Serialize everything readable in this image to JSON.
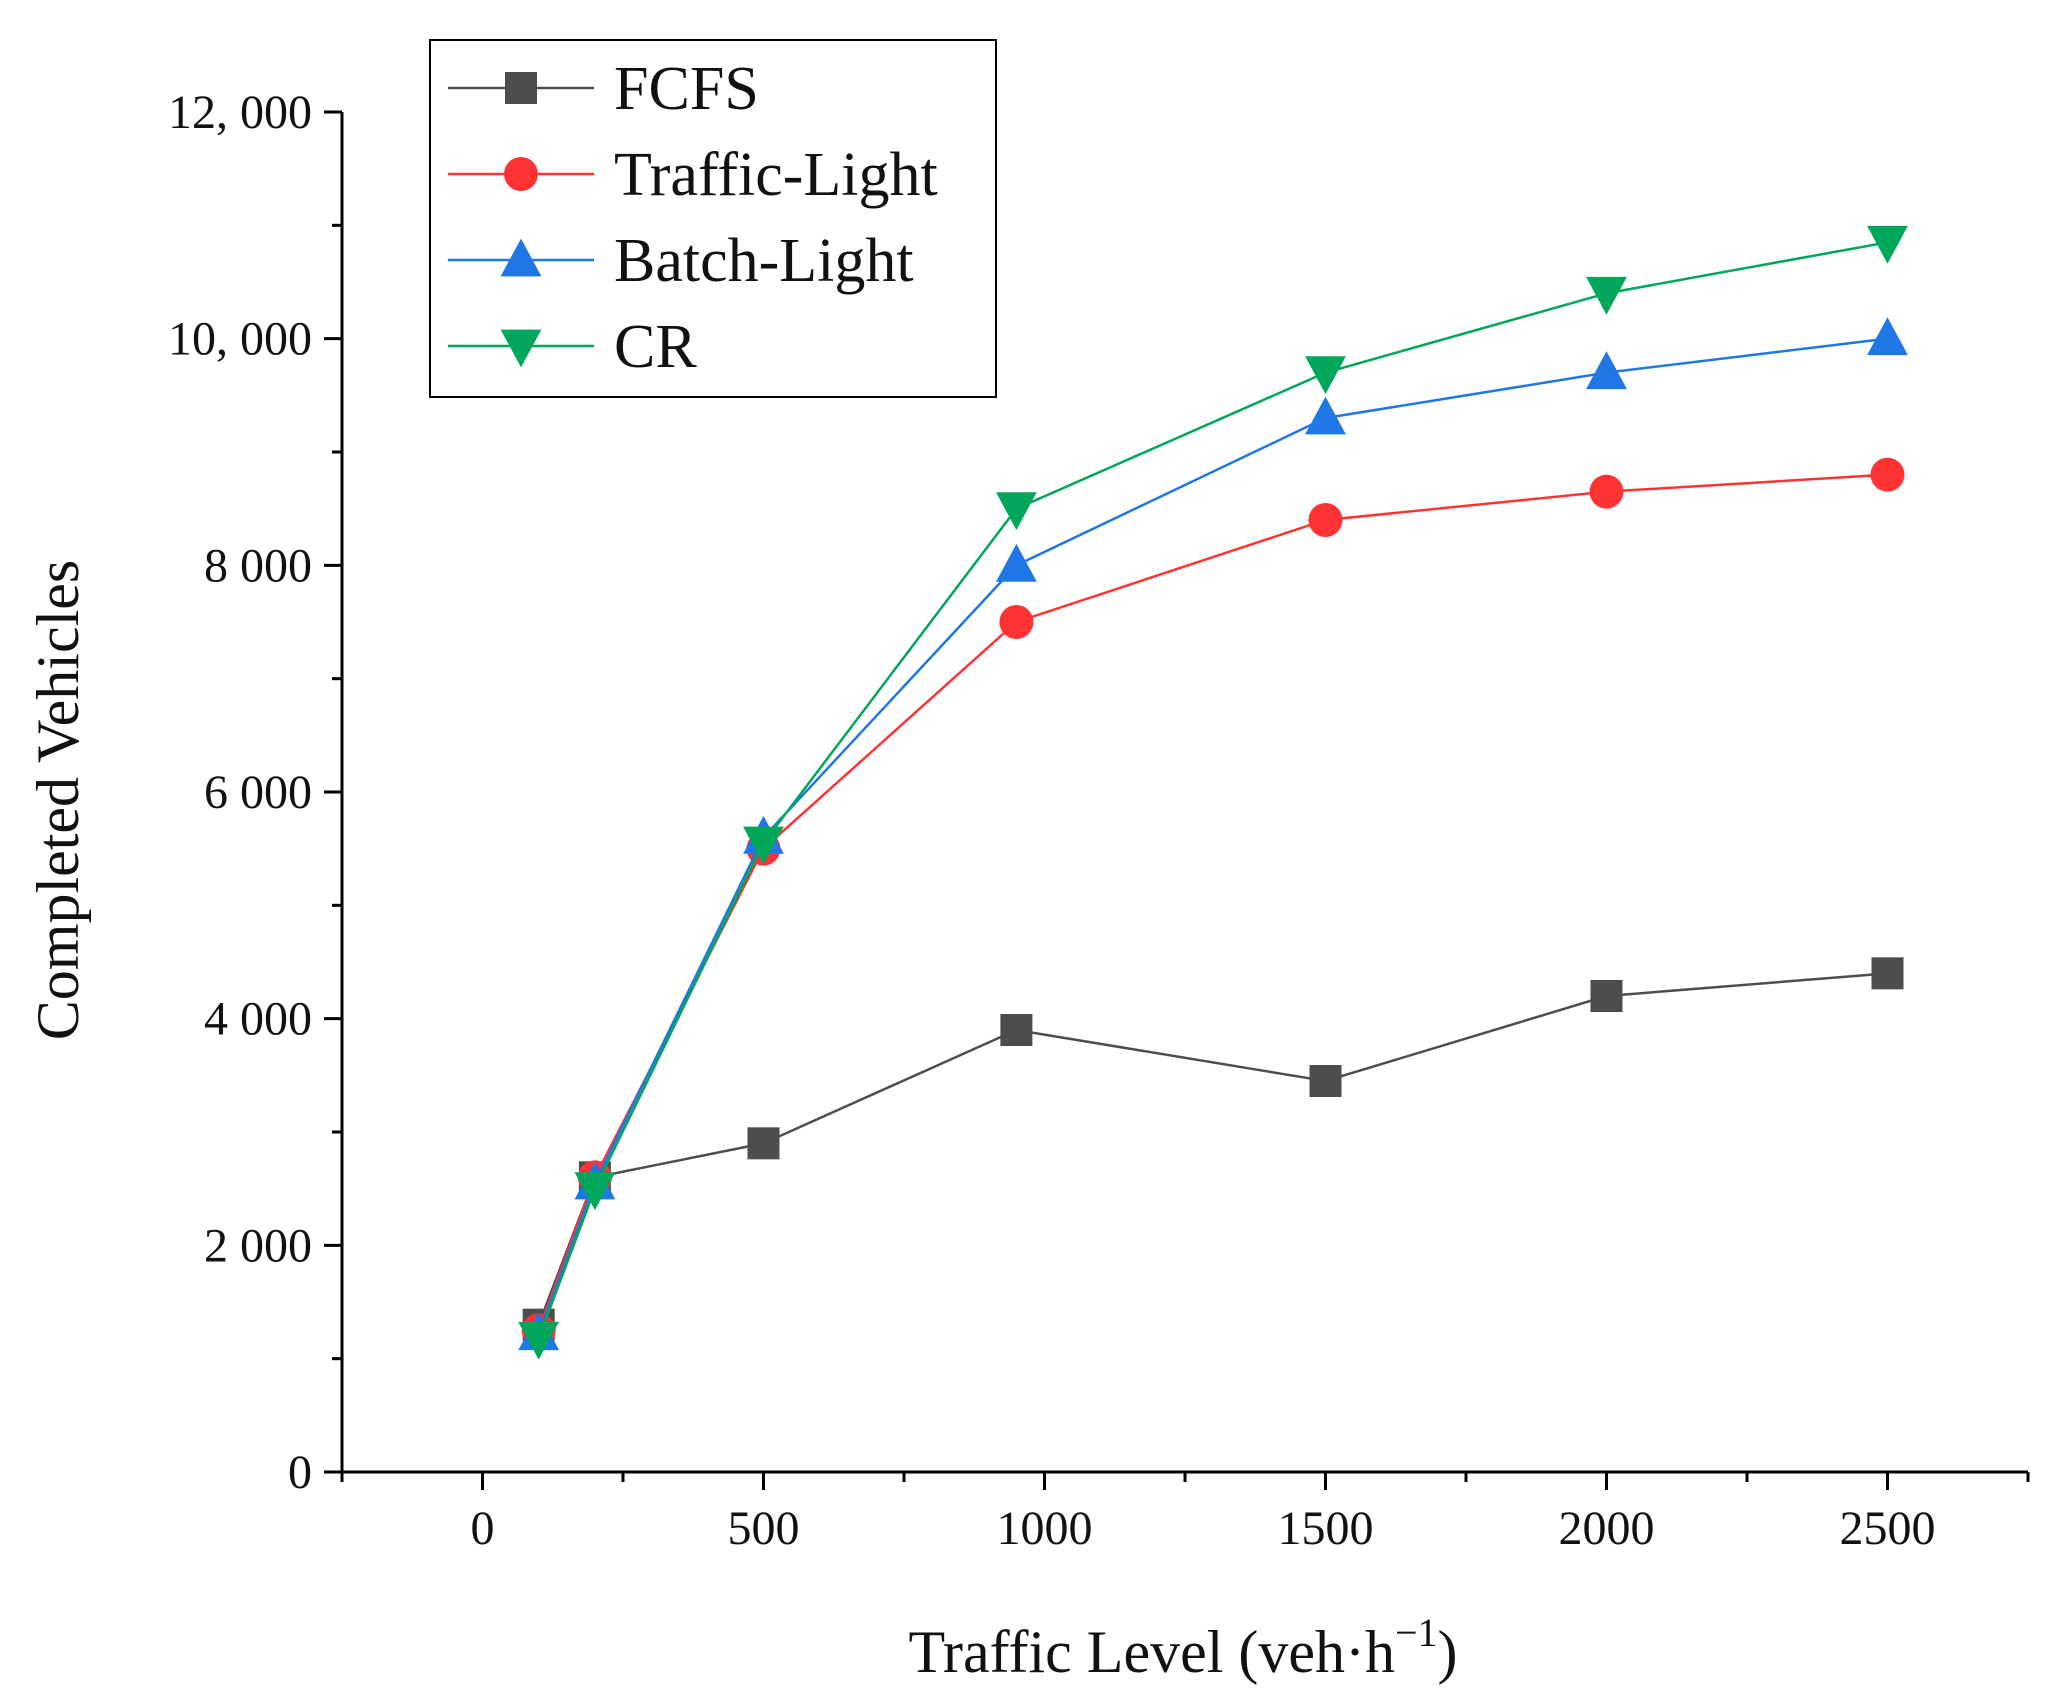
{
  "chart_data": {
    "type": "line",
    "title": "",
    "xlabel": "Traffic Level (veh·h",
    "xlabel_sup": "−1",
    "xlabel_close": ")",
    "ylabel": "Completed Vehicles",
    "xlim": [
      -250,
      2750
    ],
    "ylim": [
      0,
      12000
    ],
    "x_ticks": [
      0,
      500,
      1000,
      1500,
      2000,
      2500
    ],
    "x_tick_labels": [
      "0",
      "500",
      "1000",
      "1500",
      "2000",
      "2500"
    ],
    "y_ticks": [
      0,
      2000,
      4000,
      6000,
      8000,
      10000,
      12000
    ],
    "y_tick_labels": [
      "0",
      "2 000",
      "4 000",
      "6 000",
      "8 000",
      "10, 000",
      "12, 000"
    ],
    "grid": false,
    "legend_position": "top-left",
    "x": [
      100,
      200,
      500,
      950,
      1500,
      2000,
      2500
    ],
    "series": [
      {
        "name": "FCFS",
        "color": "#4d4d4d",
        "marker": "square",
        "values": [
          1300,
          2600,
          2900,
          3900,
          3450,
          4200,
          4400
        ]
      },
      {
        "name": "Traffic-Light",
        "color": "#ff3333",
        "marker": "circle",
        "values": [
          1250,
          2600,
          5500,
          7500,
          8400,
          8650,
          8800
        ]
      },
      {
        "name": "Batch-Light",
        "color": "#1f77e6",
        "marker": "triangle-up",
        "values": [
          1220,
          2550,
          5600,
          8000,
          9300,
          9700,
          10000
        ]
      },
      {
        "name": "CR",
        "color": "#00a65a",
        "marker": "triangle-down",
        "values": [
          1180,
          2500,
          5550,
          8500,
          9700,
          10400,
          10850
        ]
      }
    ]
  }
}
